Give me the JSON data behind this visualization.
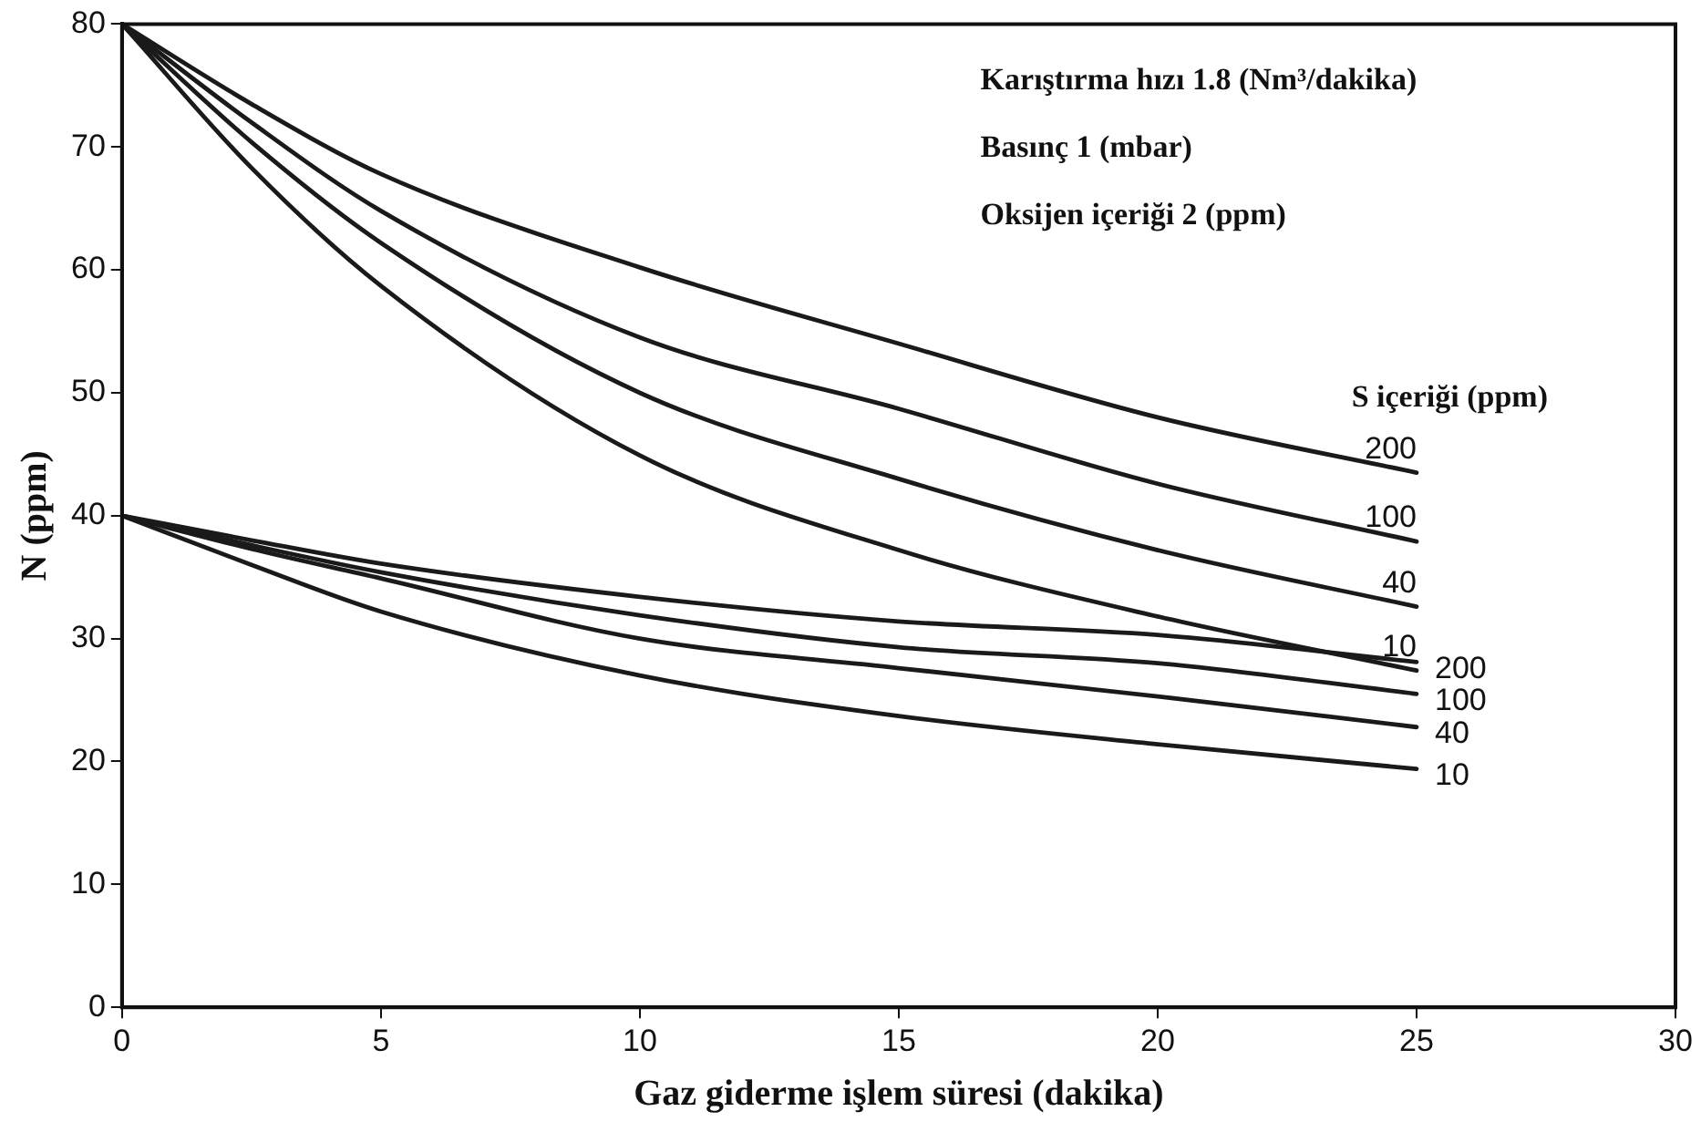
{
  "chart_data": {
    "type": "line",
    "xlabel": "Gaz giderme işlem süresi (dakika)",
    "ylabel": "N (ppm)",
    "legend_title": "S içeriği (ppm)",
    "annotations": [
      "Karıştırma hızı 1.8 (Nm³/dakika)",
      "Basınç 1 (mbar)",
      "Oksijen içeriği 2 (ppm)"
    ],
    "x": [
      0,
      2.5,
      5,
      10,
      15,
      20,
      25
    ],
    "series": [
      {
        "name": "200",
        "color": "#1a1a1a",
        "values": [
          80,
          73.5,
          67.8,
          60.2,
          54,
          48,
          43.5
        ]
      },
      {
        "name": "100",
        "color": "#1a1a1a",
        "values": [
          80,
          72,
          64.8,
          54.5,
          48.7,
          42.6,
          37.9
        ]
      },
      {
        "name": "40",
        "color": "#1a1a1a",
        "values": [
          80,
          70.4,
          62.2,
          50,
          43,
          37.2,
          32.6
        ]
      },
      {
        "name": "10",
        "color": "#1a1a1a",
        "values": [
          80,
          68.3,
          58.7,
          44.9,
          37.2,
          31.8,
          27.4
        ]
      },
      {
        "name": "200",
        "color": "#1a1a1a",
        "values": [
          40,
          38,
          36.1,
          33.4,
          31.4,
          30.3,
          28.1
        ]
      },
      {
        "name": "100",
        "color": "#1a1a1a",
        "values": [
          40,
          37.6,
          35.4,
          31.9,
          29.3,
          28,
          25.5
        ]
      },
      {
        "name": "40",
        "color": "#1a1a1a",
        "values": [
          40,
          37.3,
          34.9,
          30,
          27.6,
          25.3,
          22.8
        ]
      },
      {
        "name": "10",
        "color": "#1a1a1a",
        "values": [
          40,
          36,
          32.2,
          27,
          23.7,
          21.4,
          19.4
        ]
      }
    ],
    "xlim": [
      0,
      30
    ],
    "xticks": [
      0,
      5,
      10,
      15,
      20,
      25,
      30
    ],
    "ylim": [
      0,
      80
    ],
    "yticks": [
      0,
      10,
      20,
      30,
      40,
      50,
      60,
      70,
      80
    ],
    "grid": false,
    "legend": false,
    "marker": "none",
    "line_style": "solid"
  }
}
